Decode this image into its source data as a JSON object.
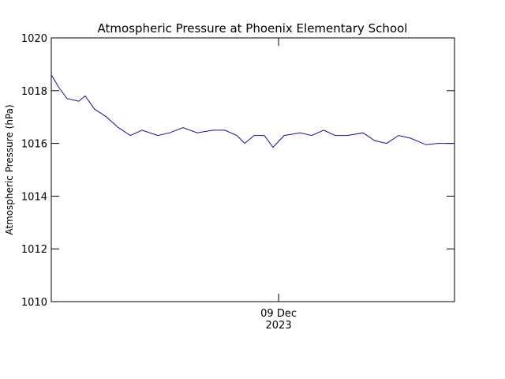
{
  "chart_data": {
    "type": "line",
    "title": "Atmospheric Pressure at Phoenix Elementary School",
    "y_label": "Atmospheric Pressure (hPa)",
    "xlim": [
      0,
      24
    ],
    "xticks": [
      {
        "value": 13.53,
        "label": "09 Dec\n2023"
      }
    ],
    "ylim": [
      1010,
      1020
    ],
    "yticks": [
      1010,
      1012,
      1014,
      1016,
      1018,
      1020
    ],
    "x": [
      0,
      0.47,
      0.94,
      1.64,
      2.01,
      2.58,
      3.29,
      3.99,
      4.7,
      5.4,
      6.34,
      7.05,
      7.84,
      8.69,
      9.63,
      10.33,
      11.04,
      11.51,
      12.07,
      12.68,
      13.2,
      13.86,
      14.8,
      15.5,
      16.21,
      16.91,
      17.61,
      18.55,
      19.26,
      19.96,
      20.67,
      21.37,
      22.31,
      23.02,
      23.95
    ],
    "series": [
      {
        "name": "Atmospheric Pressure",
        "color": "#1010a0",
        "values": [
          1018.6,
          1018.1,
          1017.7,
          1017.6,
          1017.8,
          1017.3,
          1017.0,
          1016.6,
          1016.3,
          1016.5,
          1016.3,
          1016.4,
          1016.6,
          1016.4,
          1016.5,
          1016.5,
          1016.3,
          1016.0,
          1016.3,
          1016.3,
          1015.85,
          1016.3,
          1016.4,
          1016.3,
          1016.5,
          1016.3,
          1016.3,
          1016.4,
          1016.1,
          1016.0,
          1016.3,
          1016.2,
          1015.95,
          1016.0,
          1016.0
        ]
      }
    ]
  }
}
